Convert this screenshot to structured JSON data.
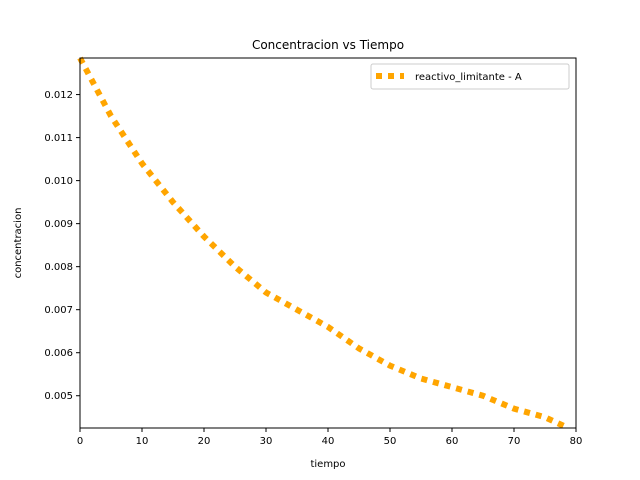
{
  "chart_data": {
    "type": "line",
    "title": "Concentracion vs Tiempo",
    "xlabel": "tiempo",
    "ylabel": "concentracion",
    "xlim": [
      0,
      80
    ],
    "ylim": [
      0.00425,
      0.01285
    ],
    "xticks": [
      0,
      10,
      20,
      30,
      40,
      50,
      60,
      70,
      80
    ],
    "xtick_labels": [
      "0",
      "10",
      "20",
      "30",
      "40",
      "50",
      "60",
      "70",
      "80"
    ],
    "yticks": [
      0.005,
      0.006,
      0.007,
      0.008,
      0.009,
      0.01,
      0.011,
      0.012
    ],
    "ytick_labels": [
      "0.005",
      "0.006",
      "0.007",
      "0.008",
      "0.009",
      "0.010",
      "0.011",
      "0.012"
    ],
    "grid": false,
    "legend": "upper right",
    "series": [
      {
        "name": "reactivo_limitante - A",
        "color": "#ffa500",
        "linestyle": "dotted",
        "x": [
          0,
          5,
          10,
          15,
          20,
          25,
          30,
          35,
          40,
          45,
          50,
          55,
          60,
          65,
          70,
          75,
          78
        ],
        "y": [
          0.01285,
          0.0115,
          0.0104,
          0.0095,
          0.0087,
          0.008,
          0.0074,
          0.007,
          0.0066,
          0.0061,
          0.0057,
          0.0054,
          0.0052,
          0.005,
          0.0047,
          0.0045,
          0.0043
        ]
      }
    ]
  }
}
